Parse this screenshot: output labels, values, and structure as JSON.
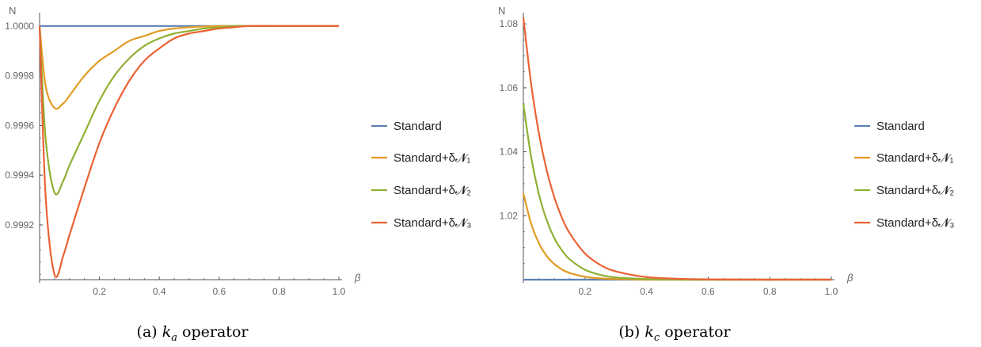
{
  "colors": {
    "series": [
      "#5E81B5",
      "#E19C24",
      "#8FB032",
      "#EB6235"
    ],
    "axis": "#555555",
    "tick_text": "#666666"
  },
  "chart_data": [
    {
      "type": "line",
      "ylabel": "N",
      "xlabel": "β",
      "xlim": [
        0,
        1.0
      ],
      "ylim": [
        0.99898,
        1.00006
      ],
      "x_ticks": [
        0.2,
        0.4,
        0.6,
        0.8,
        1.0
      ],
      "x_tick_labels": [
        "0.2",
        "0.4",
        "0.6",
        "0.8",
        "1.0"
      ],
      "y_ticks": [
        0.9992,
        0.9994,
        0.9996,
        0.9998,
        1.0
      ],
      "y_tick_labels": [
        "0.9992",
        "0.9994",
        "0.9996",
        "0.9998",
        "1.0000"
      ],
      "legend_position": "right",
      "caption": {
        "prefix": "(a)",
        "k": "k",
        "sub": "a",
        "suffix": "operator"
      },
      "series": [
        {
          "name": "Standard",
          "x": [
            0,
            1.0
          ],
          "y": [
            1.0,
            1.0
          ]
        },
        {
          "name": "Standard+δ𝓝₁",
          "x": [
            0,
            0.02,
            0.05,
            0.08,
            0.1,
            0.15,
            0.2,
            0.25,
            0.3,
            0.35,
            0.4,
            0.45,
            0.5,
            0.55,
            0.6,
            0.65,
            0.7,
            0.8,
            1.0
          ],
          "y": [
            1.0,
            0.99976,
            0.99967,
            0.99969,
            0.99972,
            0.9998,
            0.99986,
            0.9999,
            0.99994,
            0.99996,
            0.99998,
            0.99999,
            0.999995,
            0.999998,
            1.0,
            1.0,
            1.0,
            1.0,
            1.0
          ]
        },
        {
          "name": "Standard+δ𝓝₂",
          "x": [
            0,
            0.02,
            0.05,
            0.08,
            0.1,
            0.15,
            0.2,
            0.25,
            0.3,
            0.35,
            0.4,
            0.45,
            0.5,
            0.55,
            0.6,
            0.65,
            0.7,
            0.8,
            1.0
          ],
          "y": [
            1.0,
            0.99955,
            0.99933,
            0.99938,
            0.99944,
            0.99957,
            0.9997,
            0.9998,
            0.99987,
            0.99992,
            0.99995,
            0.99997,
            0.99998,
            0.99999,
            0.999995,
            1.0,
            1.0,
            1.0,
            1.0
          ]
        },
        {
          "name": "Standard+δ𝓝₃",
          "x": [
            0,
            0.02,
            0.05,
            0.08,
            0.1,
            0.15,
            0.2,
            0.25,
            0.3,
            0.35,
            0.4,
            0.45,
            0.5,
            0.55,
            0.6,
            0.65,
            0.7,
            0.8,
            1.0
          ],
          "y": [
            1.0,
            0.99932,
            0.999,
            0.99908,
            0.99916,
            0.99935,
            0.99953,
            0.99967,
            0.99978,
            0.99986,
            0.99991,
            0.99995,
            0.99997,
            0.99998,
            0.99999,
            0.999995,
            1.0,
            1.0,
            1.0
          ]
        }
      ]
    },
    {
      "type": "line",
      "ylabel": "N",
      "xlabel": "β",
      "xlim": [
        0,
        1.0
      ],
      "ylim": [
        1.0,
        1.084
      ],
      "x_ticks": [
        0.2,
        0.4,
        0.6,
        0.8,
        1.0
      ],
      "x_tick_labels": [
        "0.2",
        "0.4",
        "0.6",
        "0.8",
        "1.0"
      ],
      "y_ticks": [
        1.02,
        1.04,
        1.06,
        1.08
      ],
      "y_tick_labels": [
        "1.02",
        "1.04",
        "1.06",
        "1.08"
      ],
      "legend_position": "right",
      "caption": {
        "prefix": "(b)",
        "k": "k",
        "sub": "c",
        "suffix": "operator"
      },
      "series": [
        {
          "name": "Standard",
          "x": [
            0,
            1.0
          ],
          "y": [
            1.0,
            1.0
          ]
        },
        {
          "name": "Standard+δ𝓝₁",
          "x": [
            0,
            0.025,
            0.05,
            0.075,
            0.1,
            0.125,
            0.15,
            0.2,
            0.25,
            0.3,
            0.4,
            0.5,
            0.6,
            0.8,
            1.0
          ],
          "y": [
            1.027,
            1.0176,
            1.0115,
            1.0075,
            1.0049,
            1.0032,
            1.0021,
            1.0009,
            1.0004,
            1.0002,
            1.0,
            1.0,
            1.0,
            1.0,
            1.0
          ]
        },
        {
          "name": "Standard+δ𝓝₂",
          "x": [
            0,
            0.025,
            0.05,
            0.075,
            0.1,
            0.125,
            0.15,
            0.2,
            0.25,
            0.3,
            0.4,
            0.5,
            0.6,
            0.8,
            1.0
          ],
          "y": [
            1.055,
            1.0385,
            1.0269,
            1.0188,
            1.0131,
            1.0092,
            1.0064,
            1.0031,
            1.0015,
            1.0007,
            1.0002,
            1.0,
            1.0,
            1.0,
            1.0
          ]
        },
        {
          "name": "Standard+δ𝓝₃",
          "x": [
            0,
            0.025,
            0.05,
            0.075,
            0.1,
            0.125,
            0.15,
            0.2,
            0.25,
            0.3,
            0.4,
            0.5,
            0.6,
            0.8,
            1.0
          ],
          "y": [
            1.082,
            1.0614,
            1.046,
            1.0345,
            1.0259,
            1.0194,
            1.0146,
            1.0082,
            1.0046,
            1.0026,
            1.0008,
            1.0003,
            1.0001,
            1.0,
            1.0
          ]
        }
      ]
    }
  ]
}
